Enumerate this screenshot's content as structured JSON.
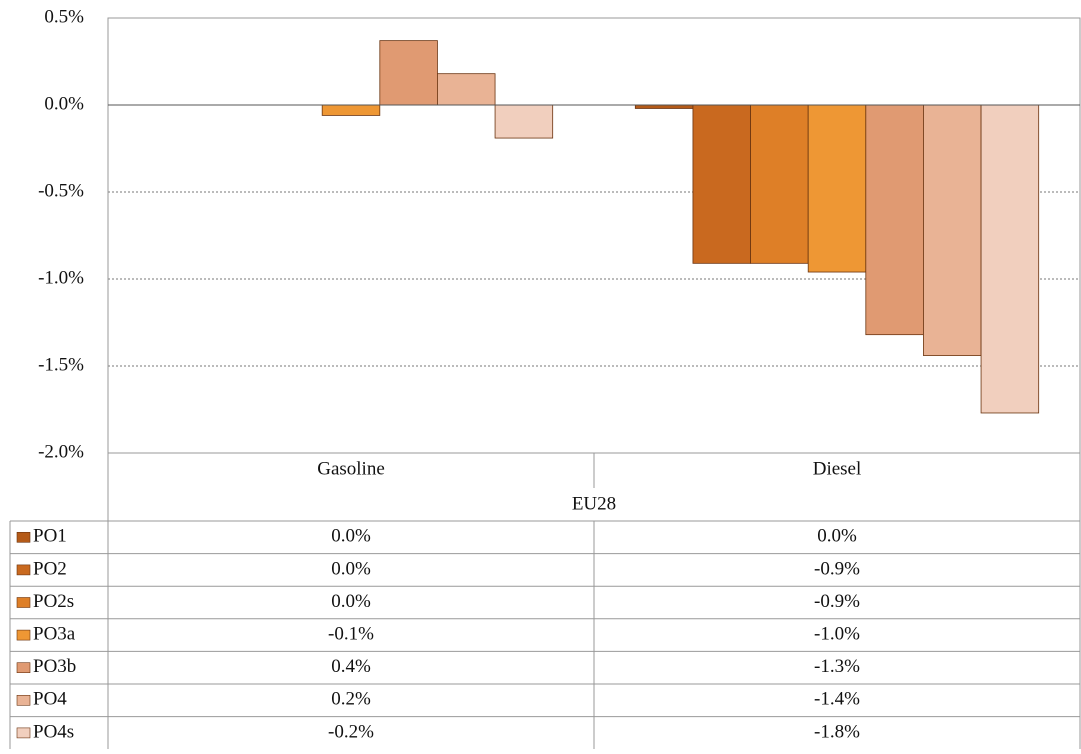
{
  "chart_data": {
    "type": "bar",
    "categories": [
      "Gasoline",
      "Diesel"
    ],
    "group_label": "EU28",
    "series": [
      {
        "name": "PO1",
        "color": "#b45a18",
        "values": [
          0.0,
          -0.02
        ],
        "value_labels": [
          "0.0%",
          "0.0%"
        ]
      },
      {
        "name": "PO2",
        "color": "#c9691f",
        "values": [
          0.0,
          -0.91
        ],
        "value_labels": [
          "0.0%",
          "-0.9%"
        ]
      },
      {
        "name": "PO2s",
        "color": "#de7f27",
        "values": [
          0.0,
          -0.91
        ],
        "value_labels": [
          "0.0%",
          "-0.9%"
        ]
      },
      {
        "name": "PO3a",
        "color": "#ee9734",
        "values": [
          -0.06,
          -0.96
        ],
        "value_labels": [
          "-0.1%",
          "-1.0%"
        ]
      },
      {
        "name": "PO3b",
        "color": "#e09a72",
        "values": [
          0.37,
          -1.32
        ],
        "value_labels": [
          "0.4%",
          "-1.3%"
        ]
      },
      {
        "name": "PO4",
        "color": "#e9b395",
        "values": [
          0.18,
          -1.44
        ],
        "value_labels": [
          "0.2%",
          "-1.4%"
        ]
      },
      {
        "name": "PO4s",
        "color": "#f1cfbe",
        "values": [
          -0.19,
          -1.77
        ],
        "value_labels": [
          "-0.2%",
          "-1.8%"
        ]
      }
    ],
    "ylim": [
      -2.0,
      0.5
    ],
    "yticks": [
      {
        "value": -2.0,
        "label": "-2.0%"
      },
      {
        "value": -1.5,
        "label": "-1.5%"
      },
      {
        "value": -1.0,
        "label": "-1.0%"
      },
      {
        "value": -0.5,
        "label": "-0.5%"
      },
      {
        "value": 0.0,
        "label": "0.0%"
      },
      {
        "value": 0.5,
        "label": "0.5%"
      }
    ],
    "grid": true
  }
}
